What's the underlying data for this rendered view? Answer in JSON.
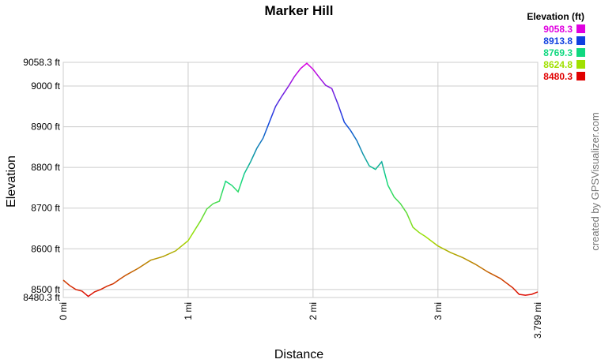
{
  "chart_data": {
    "type": "line",
    "title": "Marker Hill",
    "xlabel": "Distance",
    "ylabel": "Elevation",
    "credit": "created by GPSVisualizer.com",
    "x": [
      0,
      0.05,
      0.1,
      0.15,
      0.2,
      0.25,
      0.3,
      0.35,
      0.4,
      0.45,
      0.5,
      0.6,
      0.7,
      0.8,
      0.9,
      1.0,
      1.1,
      1.15,
      1.2,
      1.25,
      1.3,
      1.35,
      1.4,
      1.45,
      1.5,
      1.55,
      1.6,
      1.65,
      1.7,
      1.75,
      1.8,
      1.85,
      1.9,
      1.95,
      2.0,
      2.05,
      2.1,
      2.15,
      2.2,
      2.25,
      2.3,
      2.35,
      2.4,
      2.45,
      2.5,
      2.55,
      2.6,
      2.65,
      2.7,
      2.75,
      2.8,
      2.85,
      2.9,
      3.0,
      3.1,
      3.2,
      3.3,
      3.4,
      3.5,
      3.6,
      3.65,
      3.7,
      3.75,
      3.799
    ],
    "values": [
      8523,
      8510,
      8500,
      8496,
      8483,
      8494,
      8500,
      8508,
      8514,
      8525,
      8535,
      8552,
      8572,
      8581,
      8595,
      8620,
      8669,
      8698,
      8711,
      8717,
      8766,
      8756,
      8740,
      8785,
      8814,
      8847,
      8872,
      8911,
      8950,
      8975,
      8998,
      9023,
      9043,
      9056,
      9041,
      9021,
      9002,
      8994,
      8955,
      8911,
      8891,
      8866,
      8833,
      8804,
      8795,
      8814,
      8756,
      8727,
      8711,
      8688,
      8653,
      8640,
      8630,
      8607,
      8591,
      8578,
      8562,
      8543,
      8527,
      8504,
      8488,
      8486,
      8488,
      8494
    ],
    "xlim": [
      0,
      3.799
    ],
    "xticks": [
      {
        "value": 0,
        "label": "0 mi"
      },
      {
        "value": 1,
        "label": "1 mi"
      },
      {
        "value": 2,
        "label": "2 mi"
      },
      {
        "value": 3,
        "label": "3 mi"
      },
      {
        "value": 3.799,
        "label": "3.799 mi"
      }
    ],
    "ylim": [
      8480.3,
      9058.3
    ],
    "yticks": [
      {
        "value": 8480.3,
        "label": "8480.3 ft"
      },
      {
        "value": 8500,
        "label": "8500 ft"
      },
      {
        "value": 8600,
        "label": "8600 ft"
      },
      {
        "value": 8700,
        "label": "8700 ft"
      },
      {
        "value": 8800,
        "label": "8800 ft"
      },
      {
        "value": 8900,
        "label": "8900 ft"
      },
      {
        "value": 9000,
        "label": "9000 ft"
      },
      {
        "value": 9058.3,
        "label": "9058.3 ft"
      }
    ],
    "grid": true,
    "legend": {
      "title": "Elevation (ft)",
      "entries": [
        {
          "value": 9058.3,
          "color": "#e000e0"
        },
        {
          "value": 8913.8,
          "color": "#1040e0"
        },
        {
          "value": 8769.3,
          "color": "#10d880"
        },
        {
          "value": 8624.8,
          "color": "#a0e000"
        },
        {
          "value": 8480.3,
          "color": "#e00000"
        }
      ]
    }
  }
}
